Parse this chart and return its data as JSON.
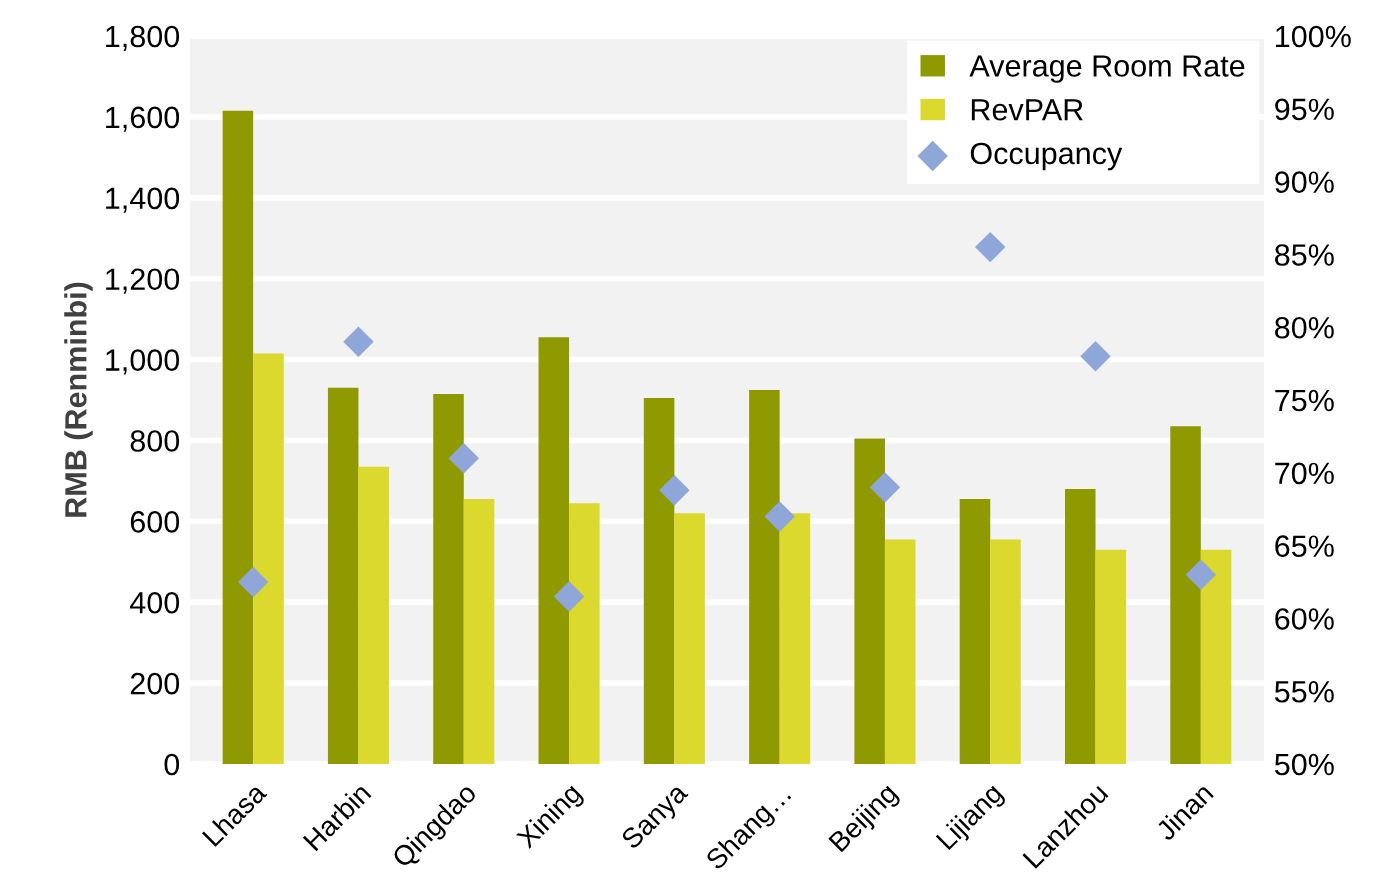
{
  "chart_data": {
    "type": "bar",
    "ylabel": "RMB (Renminbi)",
    "categories": [
      "Lhasa",
      "Harbin",
      "Qingdao",
      "Xining",
      "Sanya",
      "Shang…",
      "Beijing",
      "Lijiang",
      "Lanzhou",
      "Jinan"
    ],
    "series": [
      {
        "name": "Average Room Rate",
        "color": "#8f9900",
        "values": [
          1615,
          930,
          915,
          1055,
          905,
          925,
          805,
          655,
          680,
          835
        ]
      },
      {
        "name": "RevPAR",
        "color": "#dbd82e",
        "values": [
          1015,
          735,
          655,
          645,
          620,
          620,
          555,
          555,
          530,
          530
        ]
      },
      {
        "name": "Occupancy",
        "type": "scatter",
        "axis": "y2",
        "marker": "diamond",
        "color": "#8ea6d8",
        "values": [
          62.5,
          79,
          71,
          61.5,
          68.8,
          67,
          69,
          85.5,
          78,
          63
        ]
      }
    ],
    "ylim": [
      0,
      1800
    ],
    "yticks": [
      0,
      200,
      400,
      600,
      800,
      {
        "value": 1000,
        "label": "1,000"
      },
      {
        "value": 1200,
        "label": "1,200"
      },
      {
        "value": 1400,
        "label": "1,400"
      },
      {
        "value": 1600,
        "label": "1,600"
      },
      {
        "value": 1800,
        "label": "1,800"
      }
    ],
    "y2lim": [
      50,
      100
    ],
    "y2ticks": [
      {
        "value": 50,
        "label": "50%"
      },
      {
        "value": 55,
        "label": "55%"
      },
      {
        "value": 60,
        "label": "60%"
      },
      {
        "value": 65,
        "label": "65%"
      },
      {
        "value": 70,
        "label": "70%"
      },
      {
        "value": 75,
        "label": "75%"
      },
      {
        "value": 80,
        "label": "80%"
      },
      {
        "value": 85,
        "label": "85%"
      },
      {
        "value": 90,
        "label": "90%"
      },
      {
        "value": 95,
        "label": "95%"
      },
      {
        "value": 100,
        "label": "100%"
      }
    ],
    "grid": "y",
    "legend": "top right"
  }
}
